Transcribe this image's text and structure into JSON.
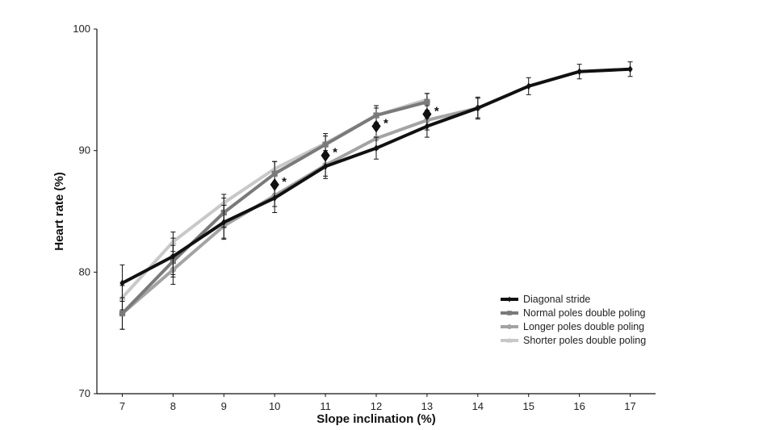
{
  "chart_data": {
    "type": "line",
    "title": "",
    "xlabel": "Slope inclination (%)",
    "ylabel": "Heart rate (%)",
    "xlim": [
      6.5,
      17.5
    ],
    "ylim": [
      70,
      100
    ],
    "x_ticks": [
      7,
      8,
      9,
      10,
      11,
      12,
      13,
      14,
      15,
      16,
      17
    ],
    "y_ticks": [
      70,
      80,
      90,
      100
    ],
    "legend_position": "bottom-right",
    "series": [
      {
        "name": "Diagonal stride",
        "color": "#111111",
        "marker": "diamond",
        "x": [
          7,
          8,
          9,
          10,
          11,
          12,
          13,
          14,
          15,
          16,
          17
        ],
        "y": [
          79.1,
          81.3,
          84.1,
          86.1,
          88.7,
          90.2,
          92.0,
          93.5,
          95.3,
          96.5,
          96.7
        ],
        "error": [
          1.5,
          1.5,
          1.4,
          1.2,
          1.0,
          0.9,
          0.9,
          0.9,
          0.7,
          0.6,
          0.6
        ]
      },
      {
        "name": "Normal poles double poling",
        "color": "#7a7a7a",
        "marker": "square",
        "x": [
          7,
          8,
          9,
          10,
          11,
          12,
          13
        ],
        "y": [
          76.6,
          80.9,
          84.9,
          88.1,
          90.5,
          92.9,
          94.0
        ],
        "error": [
          1.3,
          1.3,
          1.2,
          1.0,
          0.9,
          0.8,
          0.7
        ]
      },
      {
        "name": "Longer poles double poling",
        "color": "#a3a3a3",
        "marker": "circle",
        "x": [
          7,
          8,
          9,
          10,
          11,
          12,
          13,
          14
        ],
        "y": [
          76.6,
          80.2,
          83.8,
          86.3,
          88.8,
          91.0,
          92.5,
          93.5
        ],
        "error": [
          1.3,
          1.2,
          1.0,
          0.9,
          0.9,
          0.9,
          0.8,
          0.8
        ]
      },
      {
        "name": "Shorter poles double poling",
        "color": "#c8c8c8",
        "marker": "triangle",
        "x": [
          7,
          8,
          9,
          10,
          11,
          12,
          13
        ],
        "y": [
          77.9,
          82.5,
          85.7,
          88.5,
          90.6,
          92.9,
          94.2
        ],
        "error": [
          1.0,
          0.8,
          0.7,
          0.6,
          0.6,
          0.6,
          0.5
        ]
      }
    ],
    "annotations": [
      {
        "x": 10,
        "y": 87.2,
        "symbol": "diamond",
        "label": "*"
      },
      {
        "x": 11,
        "y": 89.6,
        "symbol": "diamond",
        "label": "*"
      },
      {
        "x": 12,
        "y": 92.0,
        "symbol": "diamond",
        "label": "*"
      },
      {
        "x": 13,
        "y": 93.0,
        "symbol": "diamond",
        "label": "*"
      }
    ]
  }
}
